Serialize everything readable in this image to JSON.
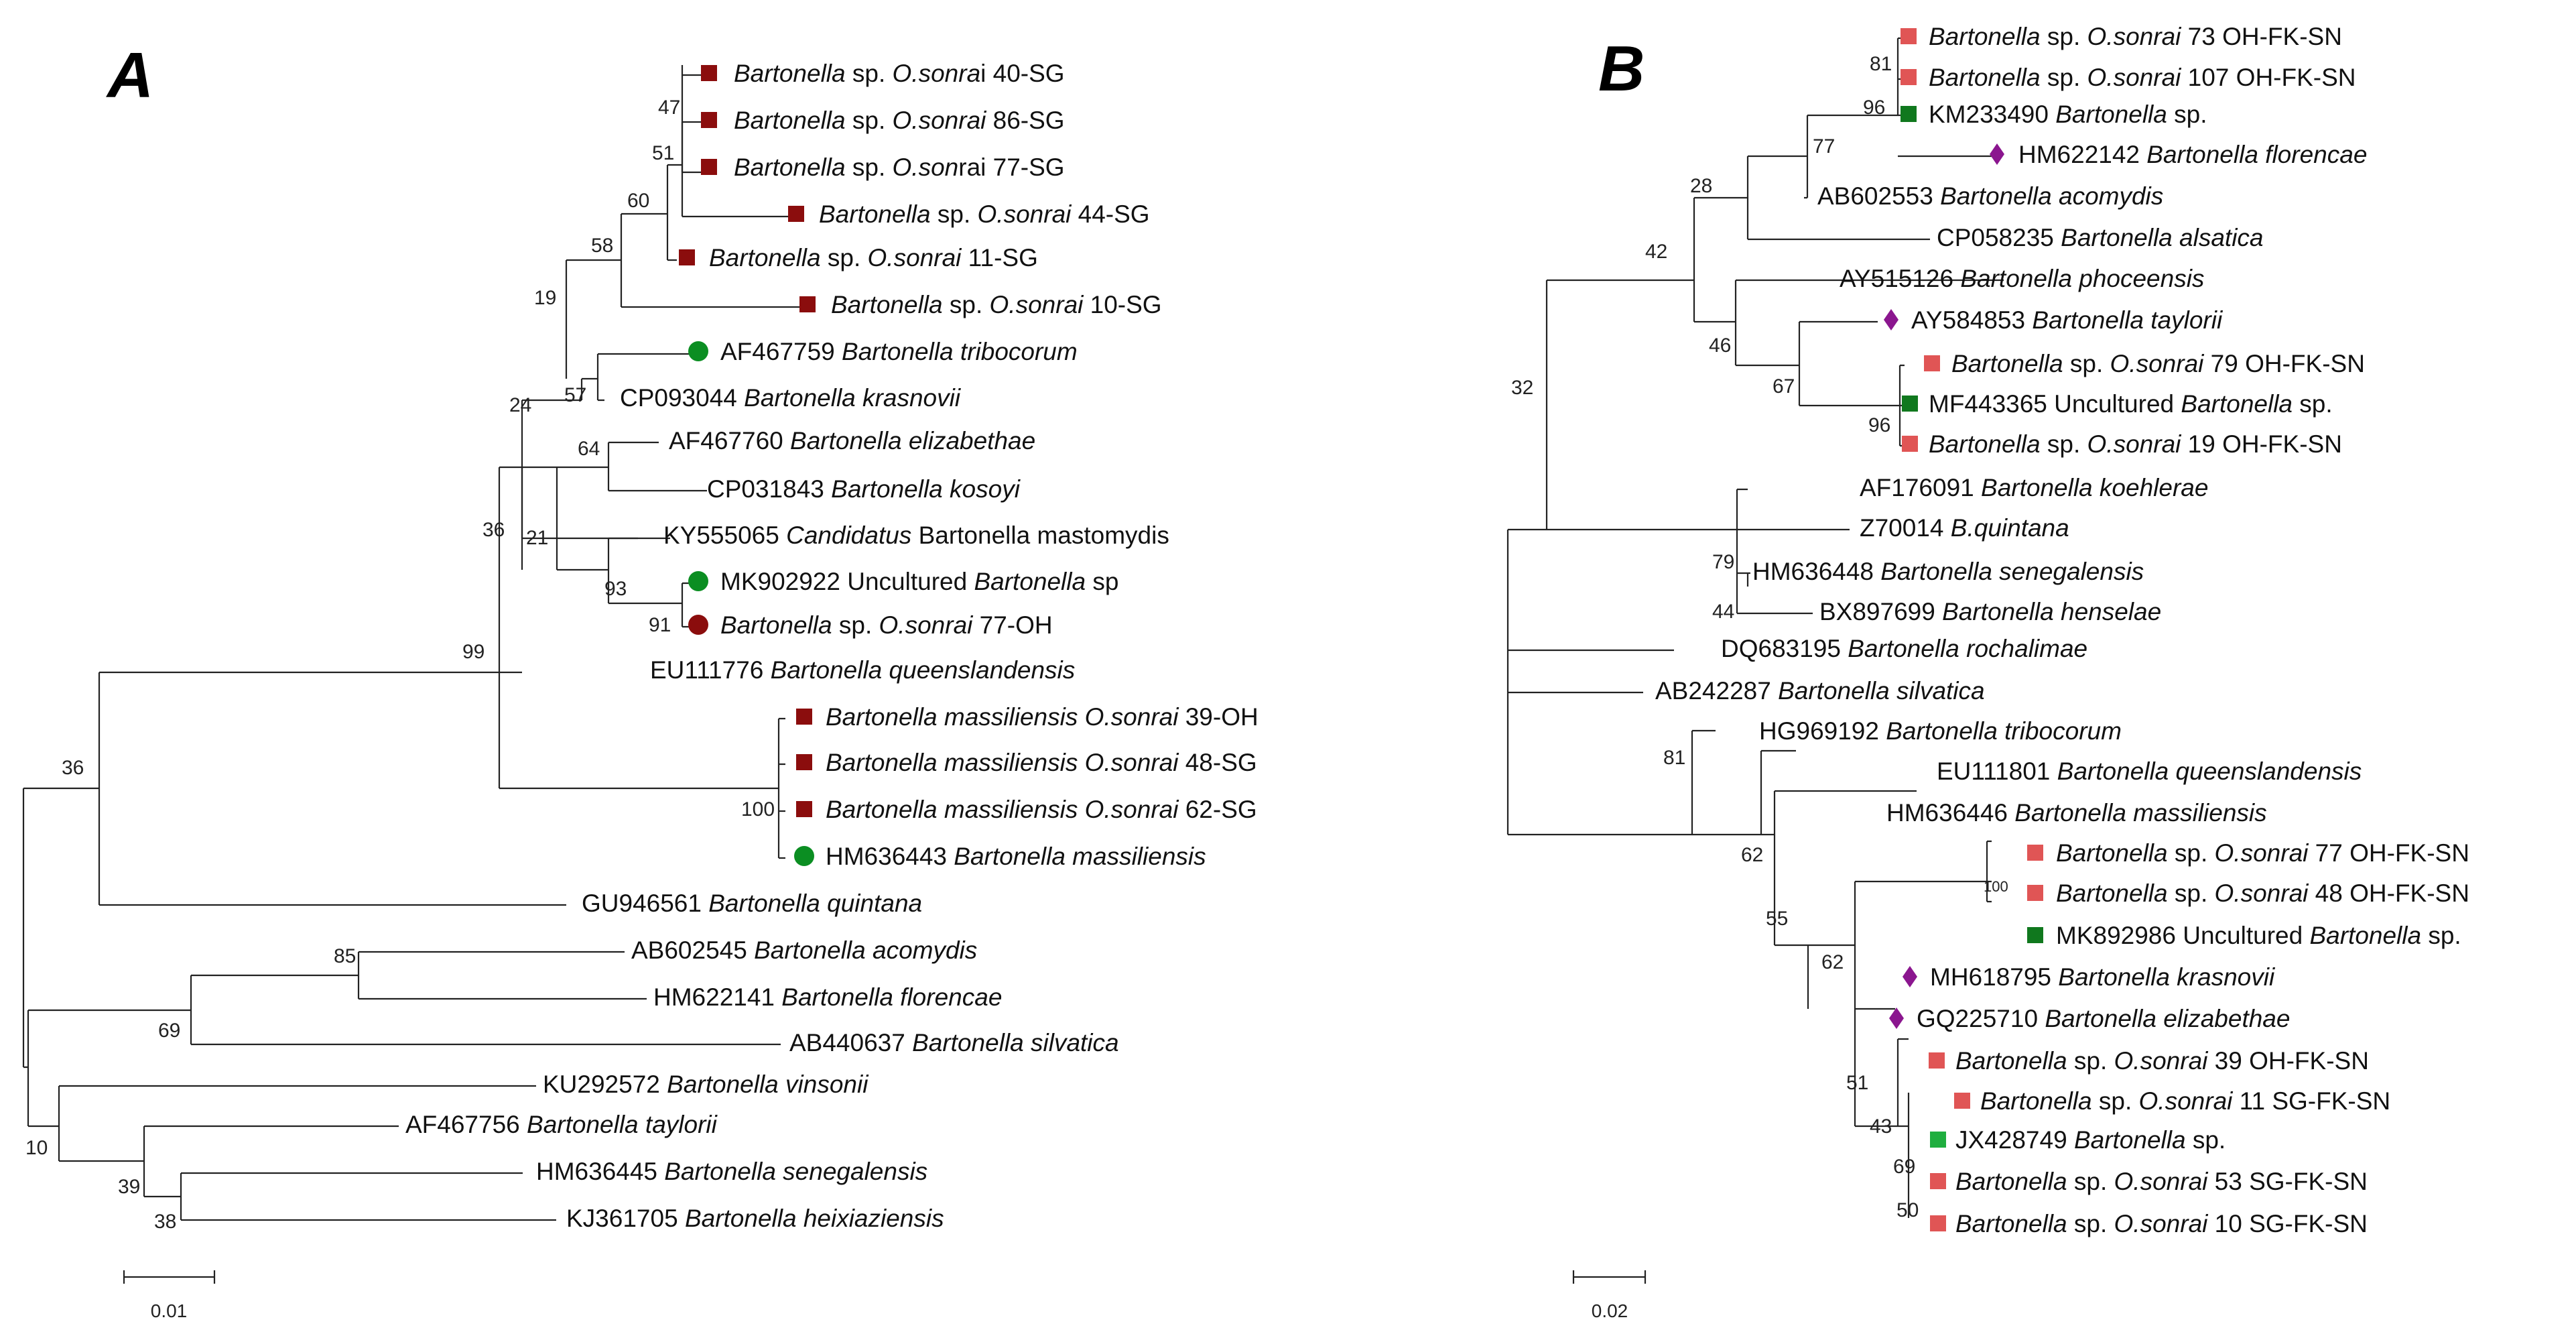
{
  "colors": {
    "dark_red": "#8b0d0d",
    "green": "#0b8e22",
    "dark_green": "#10781e",
    "light_red": "#e05555",
    "light_green": "#1fae3f",
    "purple": "#8b168f"
  },
  "panel_a": {
    "letter": "A",
    "scale_label": "0.01",
    "leaves": [
      {
        "id": "a1",
        "parts": [
          {
            "t": "Bartonella",
            "i": true
          },
          {
            "t": " sp. "
          },
          {
            "t": "O.sonra",
            "i": true
          },
          {
            "t": "i 40-SG"
          }
        ],
        "marker": "square",
        "color": "dark_red"
      },
      {
        "id": "a2",
        "parts": [
          {
            "t": "Bartonella",
            "i": true
          },
          {
            "t": " sp. "
          },
          {
            "t": "O.sonrai",
            "i": true
          },
          {
            "t": " 86-SG"
          }
        ],
        "marker": "square",
        "color": "dark_red"
      },
      {
        "id": "a3",
        "parts": [
          {
            "t": "Bartonella",
            "i": true
          },
          {
            "t": " sp. "
          },
          {
            "t": "O.son",
            "i": true
          },
          {
            "t": "rai 77-SG"
          }
        ],
        "marker": "square",
        "color": "dark_red"
      },
      {
        "id": "a4",
        "parts": [
          {
            "t": "Bartonella",
            "i": true
          },
          {
            "t": " sp. "
          },
          {
            "t": "O.sonrai",
            "i": true
          },
          {
            "t": " 44-SG"
          }
        ],
        "marker": "square",
        "color": "dark_red"
      },
      {
        "id": "a5",
        "parts": [
          {
            "t": "Bartonella",
            "i": true
          },
          {
            "t": " sp. "
          },
          {
            "t": "O.sonrai",
            "i": true
          },
          {
            "t": " 11-SG"
          }
        ],
        "marker": "square",
        "color": "dark_red"
      },
      {
        "id": "a6",
        "parts": [
          {
            "t": "Bartonella",
            "i": true
          },
          {
            "t": " sp. "
          },
          {
            "t": "O.sonrai",
            "i": true
          },
          {
            "t": " 10-SG"
          }
        ],
        "marker": "square",
        "color": "dark_red"
      },
      {
        "id": "a7",
        "parts": [
          {
            "t": "AF467759 "
          },
          {
            "t": "Bartonella tribocorum",
            "i": true
          }
        ],
        "marker": "circle",
        "color": "green"
      },
      {
        "id": "a8",
        "parts": [
          {
            "t": "CP093044 "
          },
          {
            "t": "Bartonella krasnovii",
            "i": true
          }
        ]
      },
      {
        "id": "a9",
        "parts": [
          {
            "t": "AF467760 "
          },
          {
            "t": "Bartonella elizabethae",
            "i": true
          }
        ]
      },
      {
        "id": "a10",
        "parts": [
          {
            "t": "CP031843 "
          },
          {
            "t": "Bartonella kosoyi",
            "i": true
          }
        ]
      },
      {
        "id": "a11",
        "parts": [
          {
            "t": "KY555065 "
          },
          {
            "t": "Candidatus",
            "i": true
          },
          {
            "t": " Bartonella mastomydis"
          }
        ]
      },
      {
        "id": "a12",
        "parts": [
          {
            "t": "MK902922 Uncultured "
          },
          {
            "t": "Bartonella",
            "i": true
          },
          {
            "t": " sp"
          }
        ],
        "marker": "circle",
        "color": "green"
      },
      {
        "id": "a13",
        "parts": [
          {
            "t": "Bartonella",
            "i": true
          },
          {
            "t": " sp. "
          },
          {
            "t": "O.sonrai",
            "i": true
          },
          {
            "t": " 77-OH"
          }
        ],
        "marker": "circle",
        "color": "dark_red"
      },
      {
        "id": "a14",
        "parts": [
          {
            "t": "EU111776 "
          },
          {
            "t": "Bartonella queenslandensis",
            "i": true
          }
        ]
      },
      {
        "id": "a15",
        "parts": [
          {
            "t": "Bartonella massiliensis O.sonrai",
            "i": true
          },
          {
            "t": " 39-OH"
          }
        ],
        "marker": "square",
        "color": "dark_red"
      },
      {
        "id": "a16",
        "parts": [
          {
            "t": "Bartonella massiliensis O.sonrai",
            "i": true
          },
          {
            "t": " 48-SG"
          }
        ],
        "marker": "square",
        "color": "dark_red"
      },
      {
        "id": "a17",
        "parts": [
          {
            "t": "Bartonella massiliensis O.sonrai",
            "i": true
          },
          {
            "t": " 62-SG"
          }
        ],
        "marker": "square",
        "color": "dark_red"
      },
      {
        "id": "a18",
        "parts": [
          {
            "t": "HM636443 "
          },
          {
            "t": "Bartonella massiliensis",
            "i": true
          }
        ],
        "marker": "circle",
        "color": "green"
      },
      {
        "id": "a19",
        "parts": [
          {
            "t": "GU946561 "
          },
          {
            "t": "Bartonella quintana",
            "i": true
          }
        ]
      },
      {
        "id": "a20",
        "parts": [
          {
            "t": "AB602545 "
          },
          {
            "t": "Bartonella acomydis",
            "i": true
          }
        ]
      },
      {
        "id": "a21",
        "parts": [
          {
            "t": "HM622141 "
          },
          {
            "t": "Bartonella florencae",
            "i": true
          }
        ]
      },
      {
        "id": "a22",
        "parts": [
          {
            "t": "AB440637 "
          },
          {
            "t": "Bartonella silvatica",
            "i": true
          }
        ]
      },
      {
        "id": "a23",
        "parts": [
          {
            "t": "KU292572 "
          },
          {
            "t": "Bartonella vinsonii",
            "i": true
          }
        ]
      },
      {
        "id": "a24",
        "parts": [
          {
            "t": "AF467756 "
          },
          {
            "t": "Bartonella taylorii",
            "i": true
          }
        ]
      },
      {
        "id": "a25",
        "parts": [
          {
            "t": "HM636445 "
          },
          {
            "t": "Bartonella senegalensis",
            "i": true
          }
        ]
      },
      {
        "id": "a26",
        "parts": [
          {
            "t": "KJ361705 "
          },
          {
            "t": "Bartonella heixiaziensis",
            "i": true
          }
        ]
      }
    ],
    "bootstraps": [
      {
        "id": "ab1",
        "v": "47"
      },
      {
        "id": "ab2",
        "v": "51"
      },
      {
        "id": "ab3",
        "v": "60"
      },
      {
        "id": "ab4",
        "v": "58"
      },
      {
        "id": "ab5",
        "v": "19"
      },
      {
        "id": "ab6",
        "v": "57"
      },
      {
        "id": "ab7",
        "v": "24"
      },
      {
        "id": "ab8",
        "v": "64"
      },
      {
        "id": "ab9",
        "v": "21"
      },
      {
        "id": "ab10",
        "v": "93"
      },
      {
        "id": "ab11",
        "v": "91"
      },
      {
        "id": "ab12",
        "v": "36"
      },
      {
        "id": "ab13",
        "v": "99"
      },
      {
        "id": "ab14",
        "v": "100"
      },
      {
        "id": "ab15",
        "v": "36"
      },
      {
        "id": "ab16",
        "v": "85"
      },
      {
        "id": "ab17",
        "v": "69"
      },
      {
        "id": "ab18",
        "v": "10"
      },
      {
        "id": "ab19",
        "v": "39"
      },
      {
        "id": "ab20",
        "v": "38"
      }
    ]
  },
  "panel_b": {
    "letter": "B",
    "scale_label": "0.02",
    "leaves": [
      {
        "id": "b1",
        "parts": [
          {
            "t": "Bartonella",
            "i": true
          },
          {
            "t": " sp. "
          },
          {
            "t": "O.sonrai",
            "i": true
          },
          {
            "t": " 73 OH-FK-SN"
          }
        ],
        "marker": "square",
        "color": "light_red"
      },
      {
        "id": "b2",
        "parts": [
          {
            "t": "Bartonella",
            "i": true
          },
          {
            "t": " sp. "
          },
          {
            "t": "O.sonrai",
            "i": true
          },
          {
            "t": " 107 OH-FK-SN"
          }
        ],
        "marker": "square",
        "color": "light_red"
      },
      {
        "id": "b3",
        "parts": [
          {
            "t": "KM233490 "
          },
          {
            "t": "Bartonella",
            "i": true
          },
          {
            "t": " sp."
          }
        ],
        "marker": "square",
        "color": "dark_green"
      },
      {
        "id": "b4",
        "parts": [
          {
            "t": "HM622142 "
          },
          {
            "t": "Bartonella florencae",
            "i": true
          }
        ],
        "marker": "diamond",
        "color": "purple"
      },
      {
        "id": "b5",
        "parts": [
          {
            "t": "AB602553 "
          },
          {
            "t": "Bartonella acomydis",
            "i": true
          }
        ]
      },
      {
        "id": "b6",
        "parts": [
          {
            "t": "CP058235 "
          },
          {
            "t": "Bartonella alsatica",
            "i": true
          }
        ]
      },
      {
        "id": "b7",
        "parts": [
          {
            "t": "AY515126 "
          },
          {
            "t": "Bartonella phoceensis",
            "i": true
          }
        ]
      },
      {
        "id": "b8",
        "parts": [
          {
            "t": "AY584853 "
          },
          {
            "t": "Bartonella taylorii",
            "i": true
          }
        ],
        "marker": "diamond",
        "color": "purple"
      },
      {
        "id": "b9",
        "parts": [
          {
            "t": "Bartonella",
            "i": true
          },
          {
            "t": " sp. "
          },
          {
            "t": "O.sonrai",
            "i": true
          },
          {
            "t": " 79 OH-FK-SN"
          }
        ],
        "marker": "square",
        "color": "light_red"
      },
      {
        "id": "b10",
        "parts": [
          {
            "t": "MF443365 Uncultured "
          },
          {
            "t": "Bartonella",
            "i": true
          },
          {
            "t": " sp."
          }
        ],
        "marker": "square",
        "color": "dark_green"
      },
      {
        "id": "b11",
        "parts": [
          {
            "t": "Bartonella",
            "i": true
          },
          {
            "t": " sp. "
          },
          {
            "t": "O.sonrai",
            "i": true
          },
          {
            "t": " 19 OH-FK-SN"
          }
        ],
        "marker": "square",
        "color": "light_red"
      },
      {
        "id": "b12",
        "parts": [
          {
            "t": "AF176091 "
          },
          {
            "t": "Bartonella koehlerae",
            "i": true
          }
        ]
      },
      {
        "id": "b13",
        "parts": [
          {
            "t": "Z70014 "
          },
          {
            "t": "B.quintana",
            "i": true
          }
        ]
      },
      {
        "id": "b14",
        "parts": [
          {
            "t": "HM636448 "
          },
          {
            "t": "Bartonella senegalensis",
            "i": true
          }
        ]
      },
      {
        "id": "b15",
        "parts": [
          {
            "t": "BX897699 "
          },
          {
            "t": "Bartonella henselae",
            "i": true
          }
        ]
      },
      {
        "id": "b16",
        "parts": [
          {
            "t": "DQ683195 "
          },
          {
            "t": "Bartonella rochalimae",
            "i": true
          }
        ]
      },
      {
        "id": "b17",
        "parts": [
          {
            "t": "AB242287 "
          },
          {
            "t": "Bartonella silvatica",
            "i": true
          }
        ]
      },
      {
        "id": "b18",
        "parts": [
          {
            "t": "HG969192 "
          },
          {
            "t": "Bartonella tribocorum",
            "i": true
          }
        ]
      },
      {
        "id": "b19",
        "parts": [
          {
            "t": "EU111801 "
          },
          {
            "t": "Bartonella queenslandensis",
            "i": true
          }
        ]
      },
      {
        "id": "b20",
        "parts": [
          {
            "t": "HM636446 "
          },
          {
            "t": "Bartonella massiliensis",
            "i": true
          }
        ]
      },
      {
        "id": "b21",
        "parts": [
          {
            "t": "Bartonella",
            "i": true
          },
          {
            "t": " sp. "
          },
          {
            "t": "O.sonrai",
            "i": true
          },
          {
            "t": " 77 OH-FK-SN"
          }
        ],
        "marker": "square",
        "color": "light_red"
      },
      {
        "id": "b22",
        "parts": [
          {
            "t": "Bartonella",
            "i": true
          },
          {
            "t": " sp. "
          },
          {
            "t": "O.sonrai",
            "i": true
          },
          {
            "t": " 48 OH-FK-SN"
          }
        ],
        "marker": "square",
        "color": "light_red"
      },
      {
        "id": "b23",
        "parts": [
          {
            "t": "MK892986 Uncultured "
          },
          {
            "t": "Bartonella",
            "i": true
          },
          {
            "t": " sp."
          }
        ],
        "marker": "square",
        "color": "dark_green"
      },
      {
        "id": "b24",
        "parts": [
          {
            "t": "MH618795 "
          },
          {
            "t": "Bartonella krasnovii",
            "i": true
          }
        ],
        "marker": "diamond",
        "color": "purple"
      },
      {
        "id": "b25",
        "parts": [
          {
            "t": "GQ225710 "
          },
          {
            "t": "Bartonella elizabethae",
            "i": true
          }
        ],
        "marker": "diamond",
        "color": "purple"
      },
      {
        "id": "b26",
        "parts": [
          {
            "t": "Bartonella",
            "i": true
          },
          {
            "t": " sp. "
          },
          {
            "t": "O.sonrai",
            "i": true
          },
          {
            "t": " 39 OH-FK-SN"
          }
        ],
        "marker": "square",
        "color": "light_red"
      },
      {
        "id": "b27",
        "parts": [
          {
            "t": "Bartonella",
            "i": true
          },
          {
            "t": " sp. "
          },
          {
            "t": "O.sonrai",
            "i": true
          },
          {
            "t": " 11 SG-FK-SN"
          }
        ],
        "marker": "square",
        "color": "light_red"
      },
      {
        "id": "b28",
        "parts": [
          {
            "t": "JX428749 "
          },
          {
            "t": "Bartonella",
            "i": true
          },
          {
            "t": " sp."
          }
        ],
        "marker": "square",
        "color": "light_green"
      },
      {
        "id": "b29",
        "parts": [
          {
            "t": "Bartonella",
            "i": true
          },
          {
            "t": " sp. "
          },
          {
            "t": "O.sonrai",
            "i": true
          },
          {
            "t": " 53 SG-FK-SN"
          }
        ],
        "marker": "square",
        "color": "light_red"
      },
      {
        "id": "b30",
        "parts": [
          {
            "t": "Bartonella",
            "i": true
          },
          {
            "t": " sp. "
          },
          {
            "t": "O.sonrai",
            "i": true
          },
          {
            "t": " 10 SG-FK-SN"
          }
        ],
        "marker": "square",
        "color": "light_red"
      }
    ],
    "bootstraps": [
      {
        "id": "bb1",
        "v": "81"
      },
      {
        "id": "bb2",
        "v": "96"
      },
      {
        "id": "bb3",
        "v": "77"
      },
      {
        "id": "bb4",
        "v": "28"
      },
      {
        "id": "bb5",
        "v": "42"
      },
      {
        "id": "bb6",
        "v": "46"
      },
      {
        "id": "bb7",
        "v": "67"
      },
      {
        "id": "bb8",
        "v": "96"
      },
      {
        "id": "bb9",
        "v": "32"
      },
      {
        "id": "bb10",
        "v": "79"
      },
      {
        "id": "bb11",
        "v": "44"
      },
      {
        "id": "bb12",
        "v": "81"
      },
      {
        "id": "bb13",
        "v": "62"
      },
      {
        "id": "bb14",
        "v": "55"
      },
      {
        "id": "bb15",
        "v": "100"
      },
      {
        "id": "bb16",
        "v": "62"
      },
      {
        "id": "bb17",
        "v": "51"
      },
      {
        "id": "bb18",
        "v": "43"
      },
      {
        "id": "bb19",
        "v": "69"
      },
      {
        "id": "bb20",
        "v": "50"
      }
    ]
  }
}
